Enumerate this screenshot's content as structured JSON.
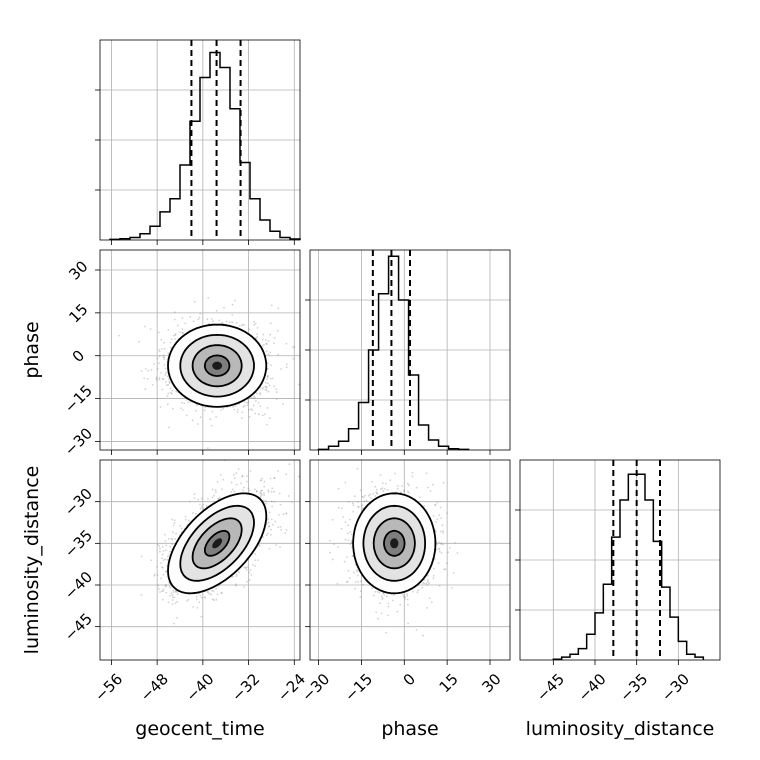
{
  "chart_data": {
    "type": "corner",
    "parameters": [
      "geocent_time",
      "phase",
      "luminosity_distance"
    ],
    "ranges": {
      "geocent_time": [
        -58,
        -23
      ],
      "phase": [
        -33,
        37
      ],
      "luminosity_distance": [
        -49,
        -25
      ]
    },
    "ticks": {
      "geocent_time": [
        -56,
        -48,
        -40,
        -32,
        -24
      ],
      "phase": [
        -30,
        -15,
        0,
        15,
        30
      ],
      "luminosity_distance": [
        -45,
        -40,
        -35,
        -30
      ]
    },
    "tick_labels": {
      "geocent_time": [
        "−56",
        "−48",
        "−40",
        "−32",
        "−24"
      ],
      "phase": [
        "−30",
        "−15",
        "0",
        "15",
        "30"
      ],
      "luminosity_distance": [
        "−45",
        "−40",
        "−35",
        "−30"
      ]
    },
    "diag_tick_labels": {
      "luminosity_distance": [
        "−45",
        "−40",
        "−35",
        "−30"
      ]
    },
    "histograms": [
      {
        "parameter": "geocent_time",
        "bin_edges": [
          -56.25,
          -54.5,
          -52.75,
          -51.0,
          -49.25,
          -47.5,
          -45.75,
          -44.0,
          -42.25,
          -40.5,
          -38.75,
          -37.0,
          -35.25,
          -33.5,
          -31.75,
          -30.0,
          -28.25,
          -26.5,
          -24.75,
          -23.0
        ],
        "counts": [
          0.5,
          1.0,
          2.0,
          5.0,
          11.0,
          22.5,
          33.0,
          60.0,
          95.0,
          130.0,
          150.0,
          138.0,
          105.0,
          62.0,
          33.0,
          16.0,
          7.0,
          2.0,
          0.8
        ],
        "quantiles": [
          -42.0,
          -37.6,
          -33.4
        ],
        "ymax": 160
      },
      {
        "parameter": "phase",
        "bin_edges": [
          -30.0,
          -26.5,
          -23.0,
          -19.5,
          -16.0,
          -12.5,
          -9.0,
          -5.5,
          -2.0,
          1.5,
          5.0,
          8.5,
          12.0,
          15.5,
          19.0,
          22.5
        ],
        "counts": [
          0.5,
          3.0,
          7.0,
          17.0,
          38.0,
          80.0,
          125.0,
          155.0,
          120.0,
          60.0,
          20.0,
          8.0,
          3.0,
          1.0,
          0.5
        ],
        "quantiles": [
          -11.0,
          -4.5,
          2.0
        ],
        "ymax": 160
      },
      {
        "parameter": "luminosity_distance",
        "bin_edges": [
          -45.0,
          -44.0,
          -43.0,
          -42.0,
          -41.0,
          -40.0,
          -39.0,
          -38.0,
          -37.0,
          -36.0,
          -35.0,
          -34.0,
          -33.0,
          -32.0,
          -31.0,
          -30.0,
          -29.0,
          -28.0,
          -27.0
        ],
        "counts": [
          0.5,
          2.0,
          4.0,
          8.0,
          18.0,
          33.0,
          53.0,
          86.0,
          112.0,
          130.0,
          130.0,
          112.0,
          83.0,
          51.0,
          30.0,
          13.0,
          4.0,
          2.0
        ],
        "quantiles": [
          -37.8,
          -35.0,
          -32.2
        ],
        "ymax": 140
      }
    ],
    "joint_distributions": [
      {
        "x": "geocent_time",
        "y": "phase",
        "mean": [
          -37.5,
          -3.5
        ],
        "sd": [
          4.3,
          7.2
        ],
        "corr": 0.0
      },
      {
        "x": "geocent_time",
        "y": "luminosity_distance",
        "mean": [
          -37.5,
          -35.0
        ],
        "sd": [
          4.3,
          3.0
        ],
        "corr": 0.55
      },
      {
        "x": "phase",
        "y": "luminosity_distance",
        "mean": [
          -3.5,
          -35.0
        ],
        "sd": [
          7.2,
          3.0
        ],
        "corr": 0.0
      }
    ],
    "sigma_levels": [
      0.5,
      1.0,
      1.5,
      2.0
    ],
    "grid": true
  }
}
